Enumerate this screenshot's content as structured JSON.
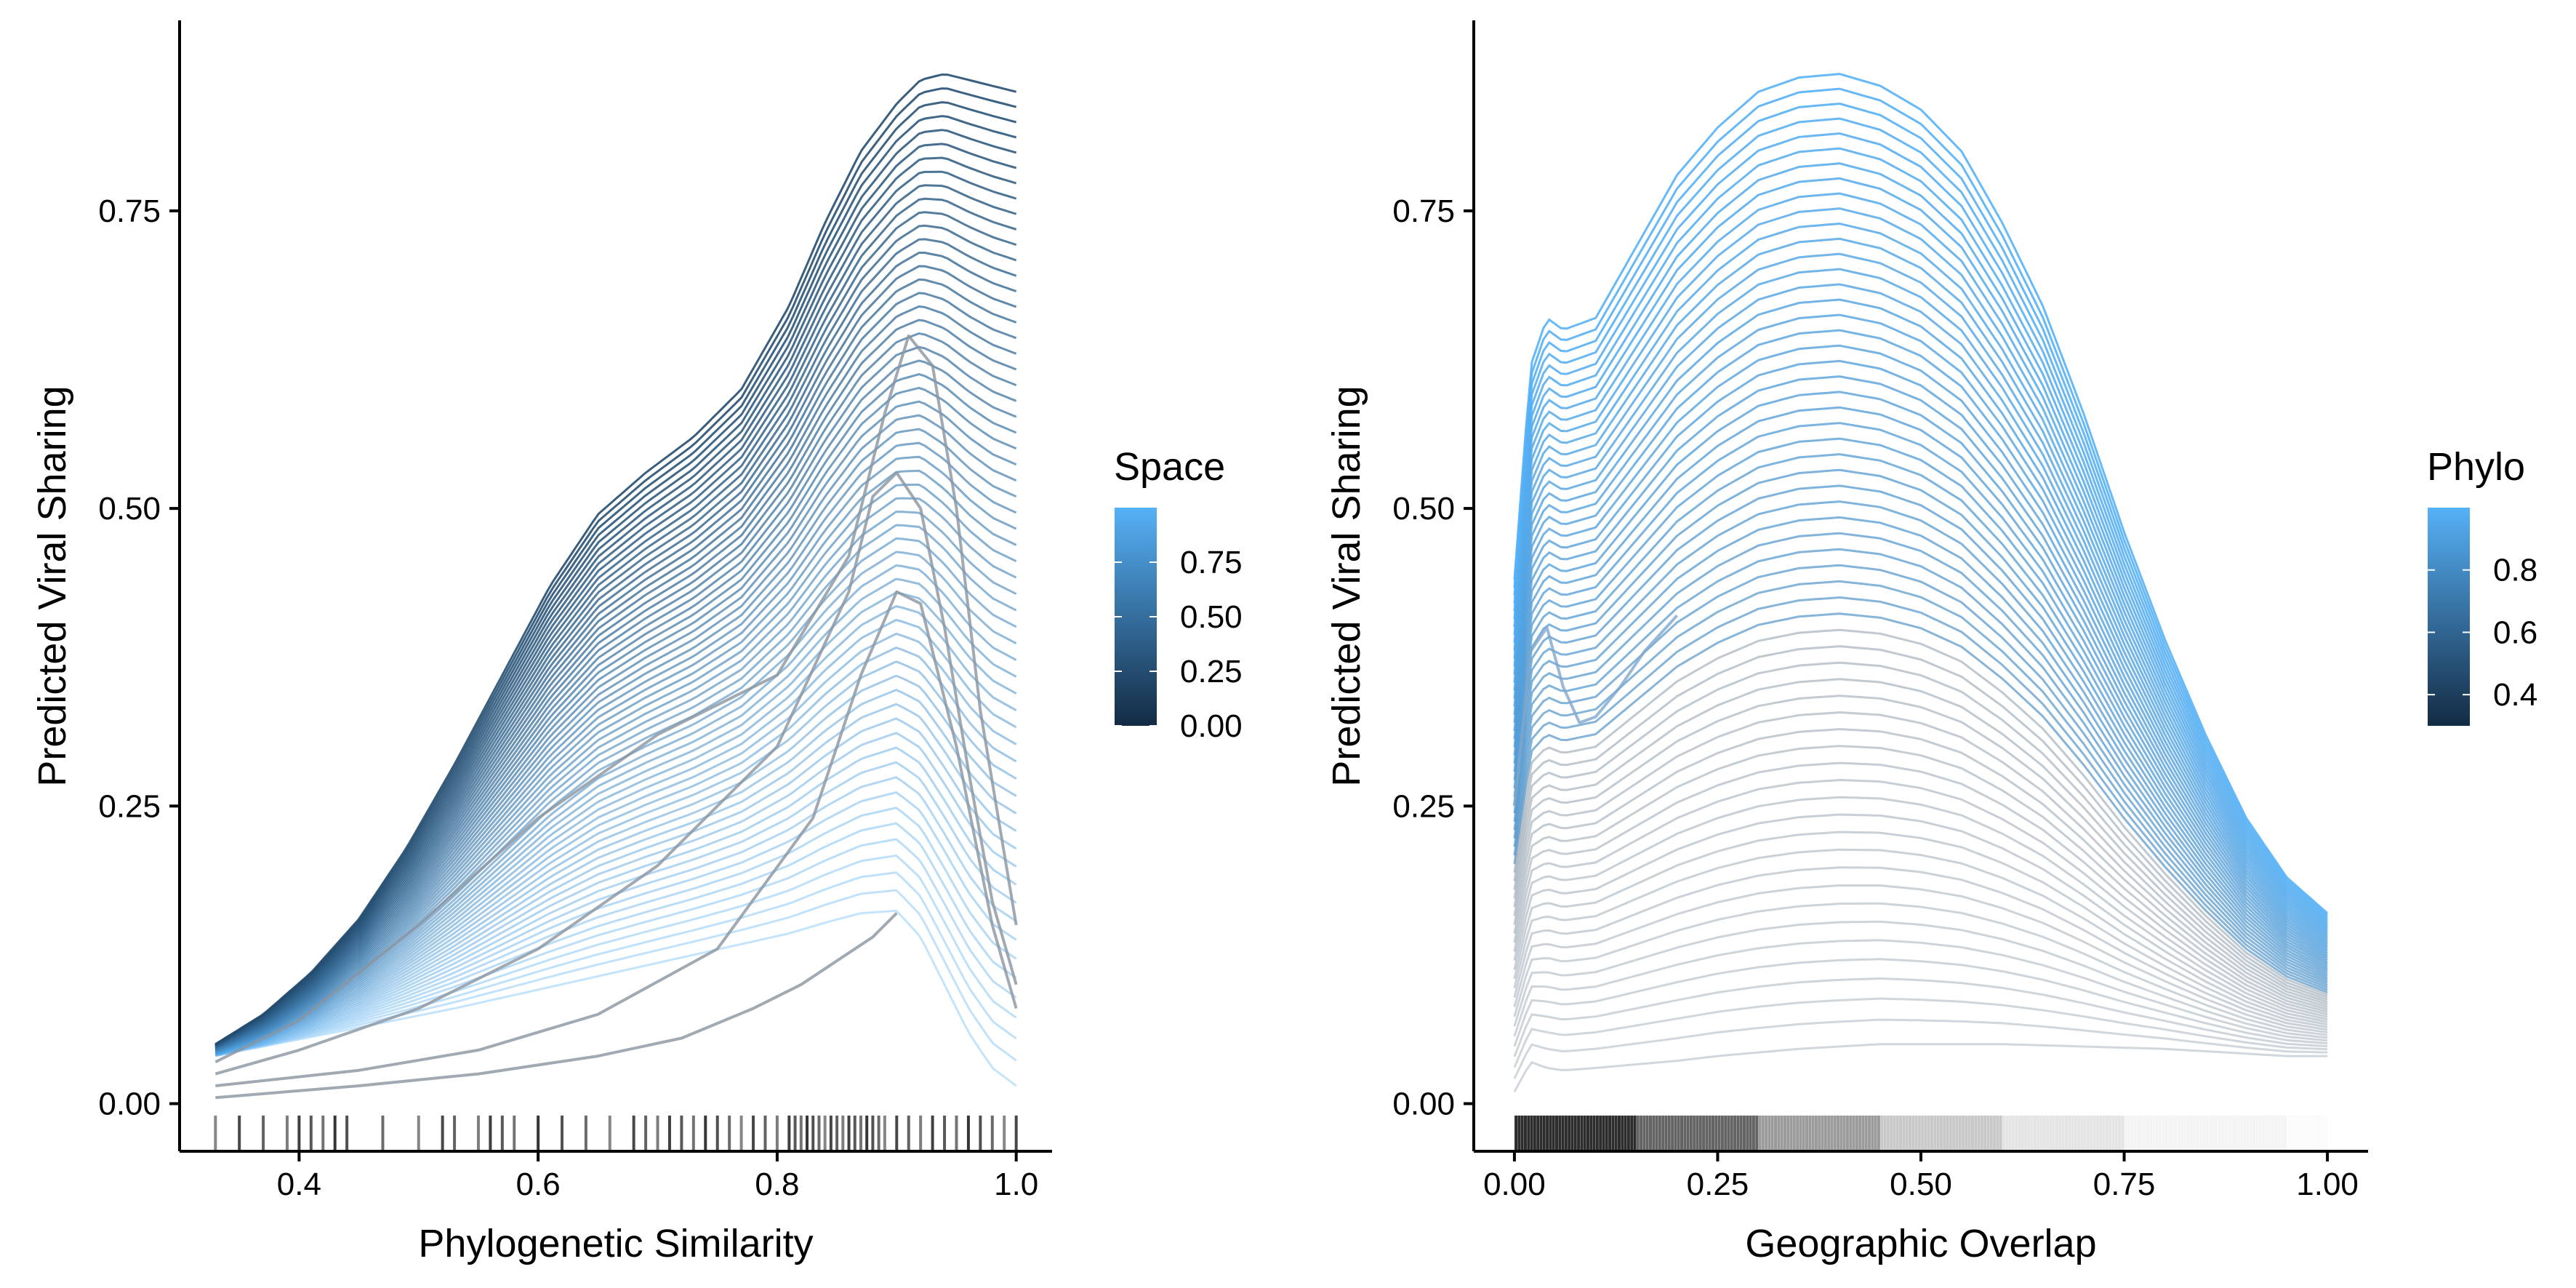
{
  "colors": {
    "low": "#132B43",
    "high": "#56B1F7",
    "rug": "#222222",
    "axis": "#000000"
  },
  "chart_data": [
    {
      "type": "line",
      "title": "",
      "xlabel": "Phylogenetic Similarity",
      "ylabel": "Predicted Viral Sharing",
      "xlim": [
        0.3,
        1.03
      ],
      "ylim": [
        -0.04,
        0.91
      ],
      "xticks": [
        {
          "value": 0.4,
          "label": "0.4"
        },
        {
          "value": 0.6,
          "label": "0.6"
        },
        {
          "value": 0.8,
          "label": "0.8"
        },
        {
          "value": 1.0,
          "label": "1.0"
        }
      ],
      "yticks": [
        {
          "value": 0.0,
          "label": "0.00"
        },
        {
          "value": 0.25,
          "label": "0.25"
        },
        {
          "value": 0.5,
          "label": "0.50"
        },
        {
          "value": 0.75,
          "label": "0.75"
        }
      ],
      "grid": false,
      "color_variable": "Space",
      "legend": {
        "title": "Space",
        "position": "right",
        "range": [
          0,
          1
        ],
        "ticks": [
          {
            "value": 0.0,
            "label": "0.00"
          },
          {
            "value": 0.25,
            "label": "0.25"
          },
          {
            "value": 0.5,
            "label": "0.50"
          },
          {
            "value": 0.75,
            "label": "0.75"
          }
        ]
      },
      "x": [
        0.33,
        0.37,
        0.41,
        0.45,
        0.49,
        0.53,
        0.57,
        0.61,
        0.65,
        0.69,
        0.73,
        0.77,
        0.81,
        0.84,
        0.87,
        0.9,
        0.92,
        0.94,
        0.96,
        0.98,
        1.0
      ],
      "envelope_upper": [
        0.05,
        0.075,
        0.11,
        0.155,
        0.215,
        0.285,
        0.36,
        0.435,
        0.495,
        0.53,
        0.56,
        0.6,
        0.67,
        0.74,
        0.8,
        0.84,
        0.86,
        0.865,
        0.86,
        0.855,
        0.85
      ],
      "envelope_lower": [
        0.04,
        0.048,
        0.056,
        0.064,
        0.072,
        0.08,
        0.089,
        0.098,
        0.107,
        0.116,
        0.125,
        0.134,
        0.143,
        0.152,
        0.16,
        0.162,
        0.14,
        0.1,
        0.06,
        0.03,
        0.015
      ],
      "highlight_curves": [
        {
          "x": [
            0.33,
            0.4,
            0.5,
            0.6,
            0.7,
            0.8,
            0.86,
            0.89,
            0.91,
            0.93,
            0.95,
            0.97,
            1.0
          ],
          "y": [
            0.035,
            0.07,
            0.15,
            0.24,
            0.31,
            0.36,
            0.46,
            0.58,
            0.645,
            0.62,
            0.5,
            0.33,
            0.15
          ]
        },
        {
          "x": [
            0.33,
            0.4,
            0.5,
            0.6,
            0.7,
            0.8,
            0.86,
            0.88,
            0.9,
            0.92,
            0.94,
            0.96,
            0.98,
            1.0
          ],
          "y": [
            0.025,
            0.045,
            0.08,
            0.13,
            0.2,
            0.3,
            0.43,
            0.51,
            0.53,
            0.5,
            0.4,
            0.28,
            0.17,
            0.1
          ]
        },
        {
          "x": [
            0.33,
            0.45,
            0.55,
            0.65,
            0.75,
            0.83,
            0.87,
            0.9,
            0.92,
            0.95,
            0.98,
            1.0
          ],
          "y": [
            0.015,
            0.028,
            0.045,
            0.075,
            0.13,
            0.24,
            0.36,
            0.43,
            0.42,
            0.3,
            0.15,
            0.08
          ]
        },
        {
          "x": [
            0.33,
            0.45,
            0.55,
            0.65,
            0.72,
            0.78,
            0.82,
            0.85,
            0.88,
            0.9
          ],
          "y": [
            0.005,
            0.015,
            0.025,
            0.04,
            0.055,
            0.08,
            0.1,
            0.12,
            0.14,
            0.16
          ]
        }
      ],
      "rug": [
        0.33,
        0.35,
        0.37,
        0.39,
        0.4,
        0.41,
        0.42,
        0.43,
        0.44,
        0.47,
        0.5,
        0.52,
        0.53,
        0.55,
        0.56,
        0.57,
        0.58,
        0.6,
        0.62,
        0.64,
        0.66,
        0.68,
        0.69,
        0.7,
        0.71,
        0.72,
        0.73,
        0.74,
        0.75,
        0.76,
        0.77,
        0.78,
        0.79,
        0.8,
        0.81,
        0.815,
        0.82,
        0.825,
        0.83,
        0.835,
        0.84,
        0.845,
        0.85,
        0.855,
        0.86,
        0.865,
        0.87,
        0.875,
        0.88,
        0.885,
        0.89,
        0.9,
        0.91,
        0.92,
        0.93,
        0.94,
        0.95,
        0.96,
        0.97,
        0.98,
        0.99,
        1.0
      ]
    },
    {
      "type": "line",
      "title": "",
      "xlabel": "Geographic Overlap",
      "ylabel": "Predicted Viral Sharing",
      "xlim": [
        -0.05,
        1.05
      ],
      "ylim": [
        -0.04,
        0.91
      ],
      "xticks": [
        {
          "value": 0.0,
          "label": "0.00"
        },
        {
          "value": 0.25,
          "label": "0.25"
        },
        {
          "value": 0.5,
          "label": "0.50"
        },
        {
          "value": 0.75,
          "label": "0.75"
        },
        {
          "value": 1.0,
          "label": "1.00"
        }
      ],
      "yticks": [
        {
          "value": 0.0,
          "label": "0.00"
        },
        {
          "value": 0.25,
          "label": "0.25"
        },
        {
          "value": 0.5,
          "label": "0.50"
        },
        {
          "value": 0.75,
          "label": "0.75"
        }
      ],
      "grid": false,
      "color_variable": "Phylo",
      "legend": {
        "title": "Phylo",
        "position": "right",
        "range": [
          0.3,
          1.0
        ],
        "ticks": [
          {
            "value": 0.4,
            "label": "0.4"
          },
          {
            "value": 0.6,
            "label": "0.6"
          },
          {
            "value": 0.8,
            "label": "0.8"
          }
        ]
      },
      "x": [
        0.0,
        0.02,
        0.04,
        0.06,
        0.1,
        0.15,
        0.2,
        0.25,
        0.3,
        0.35,
        0.4,
        0.45,
        0.5,
        0.55,
        0.6,
        0.65,
        0.7,
        0.75,
        0.8,
        0.85,
        0.9,
        0.95,
        1.0
      ],
      "envelope_upper": [
        0.44,
        0.62,
        0.66,
        0.65,
        0.66,
        0.72,
        0.78,
        0.82,
        0.85,
        0.862,
        0.865,
        0.855,
        0.835,
        0.8,
        0.74,
        0.67,
        0.58,
        0.48,
        0.39,
        0.31,
        0.24,
        0.19,
        0.16
      ],
      "envelope_lower": [
        0.01,
        0.035,
        0.03,
        0.028,
        0.03,
        0.033,
        0.036,
        0.04,
        0.043,
        0.046,
        0.048,
        0.05,
        0.05,
        0.05,
        0.05,
        0.049,
        0.048,
        0.047,
        0.046,
        0.044,
        0.042,
        0.04,
        0.04
      ],
      "highlight_curves": [
        {
          "x": [
            0.0,
            0.02,
            0.04,
            0.06,
            0.08,
            0.1,
            0.13,
            0.16,
            0.2
          ],
          "y": [
            0.25,
            0.38,
            0.4,
            0.35,
            0.32,
            0.325,
            0.35,
            0.38,
            0.41
          ]
        }
      ],
      "rug_density": [
        {
          "from": 0.0,
          "to": 0.15,
          "opacity": 0.95
        },
        {
          "from": 0.15,
          "to": 0.3,
          "opacity": 0.7
        },
        {
          "from": 0.3,
          "to": 0.45,
          "opacity": 0.45
        },
        {
          "from": 0.45,
          "to": 0.6,
          "opacity": 0.25
        },
        {
          "from": 0.6,
          "to": 0.75,
          "opacity": 0.12
        },
        {
          "from": 0.75,
          "to": 0.95,
          "opacity": 0.05
        },
        {
          "from": 0.95,
          "to": 1.0,
          "opacity": 0.02
        }
      ]
    }
  ]
}
